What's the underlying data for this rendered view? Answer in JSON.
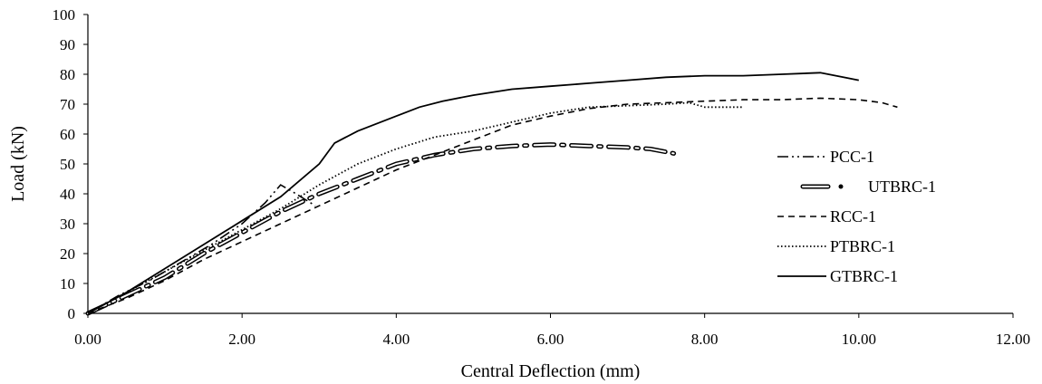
{
  "chart_data": {
    "type": "line",
    "xlabel": "Central Deflection (mm)",
    "ylabel": "Load (kN)",
    "xlim": [
      0,
      12
    ],
    "ylim": [
      0,
      100
    ],
    "xticks": [
      "0.00",
      "2.00",
      "4.00",
      "6.00",
      "8.00",
      "10.00",
      "12.00"
    ],
    "yticks": [
      "0",
      "10",
      "20",
      "30",
      "40",
      "50",
      "60",
      "70",
      "80",
      "90",
      "100"
    ],
    "grid": false,
    "legend_position": "right",
    "series": [
      {
        "name": "PCC-1",
        "style": "dash-dot-dot",
        "color": "#000000",
        "points": [
          [
            0,
            0
          ],
          [
            0.4,
            6
          ],
          [
            0.8,
            11
          ],
          [
            1.2,
            17
          ],
          [
            1.6,
            23
          ],
          [
            2.0,
            30
          ],
          [
            2.3,
            37
          ],
          [
            2.5,
            43
          ],
          [
            2.7,
            40
          ],
          [
            2.95,
            36
          ]
        ]
      },
      {
        "name": "UTBRC-1",
        "style": "long-dash-dot",
        "color": "#000000",
        "points": [
          [
            0,
            0
          ],
          [
            0.5,
            6
          ],
          [
            1.0,
            12
          ],
          [
            1.5,
            20
          ],
          [
            2.0,
            27
          ],
          [
            2.5,
            34
          ],
          [
            3.0,
            40
          ],
          [
            3.5,
            45
          ],
          [
            4.0,
            50
          ],
          [
            4.5,
            53
          ],
          [
            5.0,
            55
          ],
          [
            5.5,
            56
          ],
          [
            6.0,
            56.5
          ],
          [
            6.5,
            56
          ],
          [
            7.0,
            55.5
          ],
          [
            7.3,
            55
          ],
          [
            7.6,
            53.5
          ]
        ]
      },
      {
        "name": "RCC-1",
        "style": "dashed",
        "color": "#000000",
        "points": [
          [
            0,
            0
          ],
          [
            0.5,
            5
          ],
          [
            1.0,
            11
          ],
          [
            1.5,
            18
          ],
          [
            2.0,
            24
          ],
          [
            2.5,
            30
          ],
          [
            3.0,
            36
          ],
          [
            3.5,
            42
          ],
          [
            4.0,
            48
          ],
          [
            4.5,
            53
          ],
          [
            5.0,
            58
          ],
          [
            5.5,
            63
          ],
          [
            6.0,
            66
          ],
          [
            6.5,
            68.5
          ],
          [
            7.0,
            70
          ],
          [
            7.5,
            70.5
          ],
          [
            8.0,
            71
          ],
          [
            8.5,
            71.5
          ],
          [
            9.0,
            71.5
          ],
          [
            9.5,
            72
          ],
          [
            10.0,
            71.5
          ],
          [
            10.3,
            70.5
          ],
          [
            10.5,
            69
          ]
        ]
      },
      {
        "name": "PTBRC-1",
        "style": "dotted",
        "color": "#000000",
        "points": [
          [
            0,
            0
          ],
          [
            0.5,
            7
          ],
          [
            1.0,
            14
          ],
          [
            1.5,
            21
          ],
          [
            2.0,
            28
          ],
          [
            2.5,
            35
          ],
          [
            3.0,
            43
          ],
          [
            3.5,
            50
          ],
          [
            4.0,
            55
          ],
          [
            4.5,
            59
          ],
          [
            5.0,
            61
          ],
          [
            5.5,
            64
          ],
          [
            6.0,
            67
          ],
          [
            6.5,
            69
          ],
          [
            7.0,
            69.5
          ],
          [
            7.5,
            70
          ],
          [
            7.8,
            70.5
          ],
          [
            8.0,
            69
          ],
          [
            8.5,
            69
          ]
        ]
      },
      {
        "name": "GTBRC-1",
        "style": "solid",
        "color": "#000000",
        "points": [
          [
            0,
            0
          ],
          [
            0.5,
            7
          ],
          [
            1.0,
            15
          ],
          [
            1.5,
            23
          ],
          [
            2.0,
            31
          ],
          [
            2.5,
            39
          ],
          [
            3.0,
            50
          ],
          [
            3.2,
            57
          ],
          [
            3.5,
            61
          ],
          [
            4.0,
            66
          ],
          [
            4.3,
            69
          ],
          [
            4.6,
            71
          ],
          [
            5.0,
            73
          ],
          [
            5.5,
            75
          ],
          [
            6.0,
            76
          ],
          [
            6.5,
            77
          ],
          [
            7.0,
            78
          ],
          [
            7.5,
            79
          ],
          [
            8.0,
            79.5
          ],
          [
            8.5,
            79.5
          ],
          [
            9.0,
            80
          ],
          [
            9.5,
            80.5
          ],
          [
            9.8,
            79
          ],
          [
            10.0,
            78
          ]
        ]
      }
    ]
  }
}
